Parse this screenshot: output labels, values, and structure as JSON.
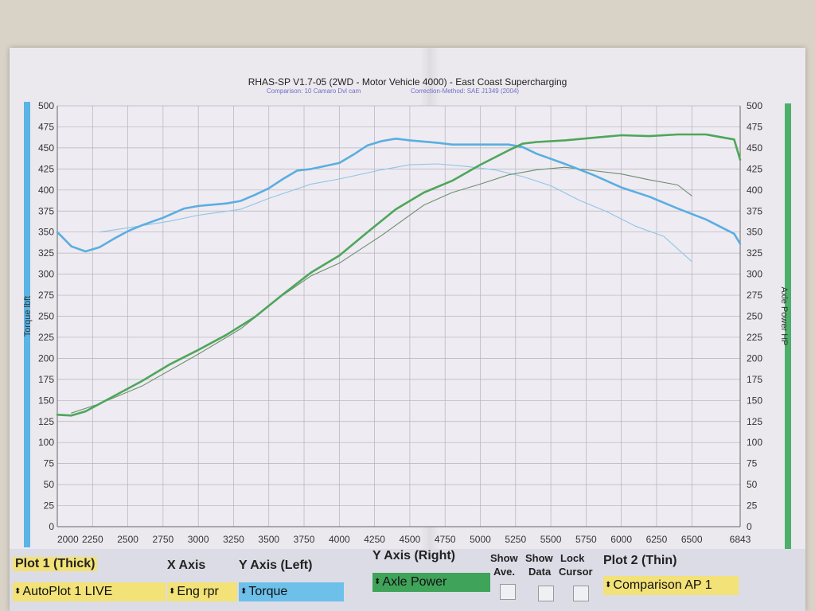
{
  "chart_data": {
    "type": "line",
    "title": "RHAS-SP V1.7-05  (2WD - Motor Vehicle 4000) - East Coast Supercharging",
    "subtitle_left": "Comparison: 10 Camaro Dvl cam",
    "subtitle_right": "Correction-Method: SAE J1349 (2004)",
    "xlabel": "",
    "ylabel_left": "Torque lbft",
    "ylabel_right": "Axle Power HP",
    "xlim": [
      2000,
      6843
    ],
    "ylim": [
      0,
      500
    ],
    "x_ticks": [
      "2000",
      "2250",
      "2500",
      "2750",
      "3000",
      "3250",
      "3500",
      "3750",
      "4000",
      "4250",
      "4500",
      "4750",
      "5000",
      "5250",
      "5500",
      "5750",
      "6000",
      "6250",
      "6500",
      "6843"
    ],
    "y_ticks": [
      "500",
      "475",
      "450",
      "425",
      "400",
      "375",
      "350",
      "325",
      "300",
      "275",
      "250",
      "225",
      "200",
      "175",
      "150",
      "125",
      "100",
      "75",
      "50",
      "25",
      "0"
    ],
    "grid": true,
    "series": [
      {
        "name": "Torque",
        "color": "#5aaee0",
        "thick": true,
        "x": [
          2000,
          2100,
          2200,
          2300,
          2400,
          2500,
          2600,
          2750,
          2900,
          3000,
          3200,
          3300,
          3400,
          3500,
          3600,
          3700,
          3800,
          4000,
          4100,
          4200,
          4300,
          4400,
          4500,
          4700,
          4800,
          5000,
          5200,
          5300,
          5400,
          5600,
          5800,
          6000,
          6200,
          6400,
          6600,
          6800,
          6843
        ],
        "y": [
          350,
          333,
          327,
          332,
          342,
          351,
          358,
          367,
          378,
          381,
          384,
          387,
          394,
          402,
          413,
          423,
          425,
          432,
          442,
          453,
          458,
          461,
          459,
          456,
          454,
          454,
          454,
          451,
          443,
          431,
          418,
          403,
          392,
          378,
          365,
          348,
          336
        ]
      },
      {
        "name": "Axle Power",
        "color": "#4ea65a",
        "thick": true,
        "x": [
          2000,
          2100,
          2200,
          2400,
          2600,
          2800,
          3000,
          3200,
          3400,
          3600,
          3800,
          4000,
          4200,
          4400,
          4600,
          4800,
          5000,
          5200,
          5300,
          5400,
          5600,
          5800,
          6000,
          6200,
          6400,
          6600,
          6800,
          6843
        ],
        "y": [
          133,
          132,
          137,
          155,
          173,
          193,
          210,
          228,
          249,
          276,
          302,
          322,
          350,
          377,
          397,
          411,
          430,
          447,
          455,
          457,
          459,
          462,
          465,
          464,
          466,
          466,
          460,
          436
        ]
      },
      {
        "name": "",
        "color": "#8fc5e4",
        "thick": false,
        "x": [
          2300,
          2500,
          2800,
          3000,
          3300,
          3500,
          3800,
          4000,
          4300,
          4500,
          4700,
          4900,
          5100,
          5300,
          5500,
          5700,
          5900,
          6100,
          6300,
          6500
        ],
        "y": [
          350,
          355,
          363,
          370,
          377,
          390,
          407,
          413,
          424,
          430,
          431,
          428,
          424,
          416,
          405,
          388,
          374,
          357,
          345,
          315
        ]
      },
      {
        "name": "",
        "color": "#6e8e6e",
        "thick": false,
        "x": [
          2100,
          2300,
          2600,
          3000,
          3300,
          3600,
          3800,
          4000,
          4300,
          4600,
          4800,
          5000,
          5200,
          5400,
          5600,
          5800,
          6000,
          6200,
          6400,
          6500
        ],
        "y": [
          135,
          146,
          167,
          205,
          235,
          275,
          298,
          313,
          346,
          382,
          397,
          407,
          418,
          424,
          427,
          423,
          419,
          412,
          406,
          393
        ]
      }
    ]
  },
  "controls": {
    "plot1_label": "Plot 1 (Thick)",
    "plot1_value": "AutoPlot 1 LIVE",
    "xaxis_label": "X Axis",
    "xaxis_value": "Eng rpr",
    "yleft_label": "Y Axis (Left)",
    "yleft_value": "Torque",
    "yright_label": "Y Axis (Right)",
    "yright_value": "Axle Power",
    "show_ave_line1": "Show",
    "show_ave_line2": "Ave.",
    "show_data_line1": "Show",
    "show_data_line2": "Data",
    "lock_cursor_line1": "Lock",
    "lock_cursor_line2": "Cursor",
    "plot2_label": "Plot 2 (Thin)",
    "plot2_value": "Comparison AP 1",
    "spinner_glyph": "⬍",
    "colors": {
      "yellow": "#f2e278",
      "blue": "#6cc0ea",
      "green": "#3fa35a"
    }
  }
}
